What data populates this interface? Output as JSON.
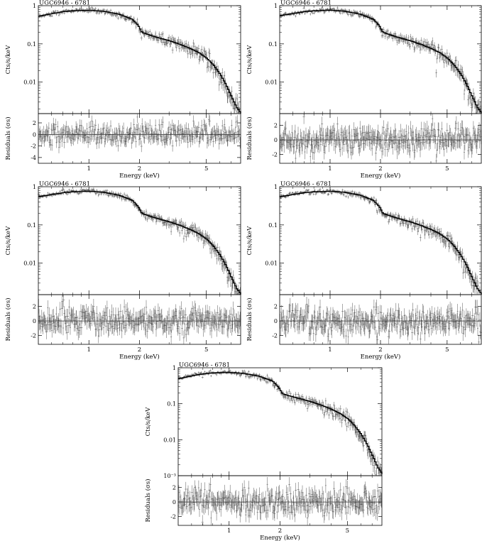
{
  "figure": {
    "panels": [
      {
        "title": "UGC6946 - 6781",
        "ylabel_top": "Cts/s/keV",
        "ylabel_bottom": "Residuals (σs)",
        "xlabel": "Energy (keV)"
      },
      {
        "title": "UGC6946 - 6781",
        "ylabel_top": "Cts/s/keV",
        "ylabel_bottom": "Residuals (σs)",
        "xlabel": "Energy (keV)"
      },
      {
        "title": "UGC6946 - 6781",
        "ylabel_top": "Cts/s/keV",
        "ylabel_bottom": "Residuals (σs)",
        "xlabel": "Energy (keV)"
      },
      {
        "title": "UGC6946 - 6781",
        "ylabel_top": "Cts/s/keV",
        "ylabel_bottom": "Residuals (σs)",
        "xlabel": "Energy (keV)"
      },
      {
        "title": "UGC6946 - 6781",
        "ylabel_top": "Cts/s/keV",
        "ylabel_bottom": "Residuals (σs)",
        "xlabel": "Energy (keV)"
      }
    ]
  },
  "chart_data": [
    {
      "type": "scatter",
      "title": "UGC6946 - 6781",
      "xlabel": "Energy (keV)",
      "ylabel": "Cts/s/keV",
      "residual_ylabel": "Residuals (σs)",
      "xscale": "log",
      "xlim": [
        0.5,
        8.0
      ],
      "xticks": [
        1,
        2,
        5
      ],
      "yscale": "log",
      "ylim": [
        0.0015,
        1.0
      ],
      "yticks": [
        1,
        0.1,
        0.01
      ],
      "ytick_labels": [
        "1",
        "0.1",
        "0.01"
      ],
      "residual_ylim": [
        -5,
        3.6
      ],
      "residual_yticks": [
        2,
        0,
        -2,
        -4
      ],
      "model_curve": {
        "x": [
          0.5,
          0.6,
          0.7,
          0.8,
          1.0,
          1.2,
          1.5,
          1.8,
          1.95,
          2.05,
          2.2,
          2.5,
          3.0,
          3.5,
          4.0,
          4.5,
          5.0,
          5.5,
          6.0,
          6.5,
          7.0,
          7.5,
          8.0
        ],
        "y": [
          0.53,
          0.62,
          0.7,
          0.74,
          0.76,
          0.72,
          0.6,
          0.44,
          0.3,
          0.2,
          0.18,
          0.15,
          0.12,
          0.095,
          0.075,
          0.058,
          0.042,
          0.027,
          0.016,
          0.0085,
          0.0042,
          0.0022,
          0.0015
        ]
      }
    },
    {
      "type": "scatter",
      "title": "UGC6946 - 6781",
      "xlabel": "Energy (keV)",
      "ylabel": "Cts/s/keV",
      "residual_ylabel": "Residuals (σs)",
      "xscale": "log",
      "xlim": [
        0.5,
        8.0
      ],
      "xticks": [
        1,
        2,
        5
      ],
      "yscale": "log",
      "ylim": [
        0.0015,
        1.0
      ],
      "yticks": [
        1,
        0.1,
        0.01
      ],
      "ytick_labels": [
        "1",
        "0.1",
        "0.01"
      ],
      "residual_ylim": [
        -3.2,
        3.6
      ],
      "residual_yticks": [
        2,
        0,
        -2
      ],
      "model_curve": {
        "x": [
          0.5,
          0.6,
          0.7,
          0.8,
          1.0,
          1.2,
          1.5,
          1.8,
          1.95,
          2.05,
          2.2,
          2.5,
          3.0,
          3.5,
          4.0,
          4.5,
          5.0,
          5.5,
          6.0,
          6.5,
          7.0,
          7.5,
          8.0
        ],
        "y": [
          0.55,
          0.63,
          0.7,
          0.74,
          0.76,
          0.72,
          0.6,
          0.44,
          0.3,
          0.2,
          0.18,
          0.15,
          0.12,
          0.095,
          0.075,
          0.058,
          0.042,
          0.027,
          0.016,
          0.0085,
          0.0042,
          0.0022,
          0.0015
        ]
      }
    },
    {
      "type": "scatter",
      "title": "UGC6946 - 6781",
      "xlabel": "Energy (keV)",
      "ylabel": "Cts/s/keV",
      "residual_ylabel": "Residuals (σs)",
      "xscale": "log",
      "xlim": [
        0.5,
        8.0
      ],
      "xticks": [
        1,
        2,
        5
      ],
      "yscale": "log",
      "ylim": [
        0.0015,
        1.0
      ],
      "yticks": [
        1,
        0.1,
        0.01
      ],
      "ytick_labels": [
        "1",
        "0.1",
        "0.01"
      ],
      "residual_ylim": [
        -3.2,
        3.6
      ],
      "residual_yticks": [
        2,
        0,
        -2
      ],
      "model_curve": {
        "x": [
          0.5,
          0.6,
          0.7,
          0.8,
          1.0,
          1.2,
          1.5,
          1.8,
          1.95,
          2.05,
          2.2,
          2.5,
          3.0,
          3.5,
          4.0,
          4.5,
          5.0,
          5.5,
          6.0,
          6.5,
          7.0,
          7.5,
          8.0
        ],
        "y": [
          0.55,
          0.63,
          0.7,
          0.74,
          0.76,
          0.72,
          0.6,
          0.44,
          0.3,
          0.2,
          0.18,
          0.15,
          0.12,
          0.095,
          0.075,
          0.058,
          0.042,
          0.027,
          0.016,
          0.0085,
          0.0042,
          0.0022,
          0.0015
        ]
      }
    },
    {
      "type": "scatter",
      "title": "UGC6946 - 6781",
      "xlabel": "Energy (keV)",
      "ylabel": "Cts/s/keV",
      "residual_ylabel": "Residuals (σs)",
      "xscale": "log",
      "xlim": [
        0.5,
        8.0
      ],
      "xticks": [
        1,
        2,
        5
      ],
      "yscale": "log",
      "ylim": [
        0.0015,
        1.0
      ],
      "yticks": [
        1,
        0.1,
        0.01
      ],
      "ytick_labels": [
        "1",
        "0.1",
        "0.01"
      ],
      "residual_ylim": [
        -3.2,
        3.6
      ],
      "residual_yticks": [
        2,
        0,
        -2
      ],
      "model_curve": {
        "x": [
          0.5,
          0.6,
          0.7,
          0.8,
          1.0,
          1.2,
          1.5,
          1.8,
          1.95,
          2.05,
          2.2,
          2.5,
          3.0,
          3.5,
          4.0,
          4.5,
          5.0,
          5.5,
          6.0,
          6.5,
          7.0,
          7.5,
          8.0
        ],
        "y": [
          0.55,
          0.63,
          0.7,
          0.74,
          0.76,
          0.72,
          0.6,
          0.44,
          0.3,
          0.2,
          0.18,
          0.15,
          0.12,
          0.095,
          0.075,
          0.058,
          0.042,
          0.027,
          0.016,
          0.0085,
          0.0042,
          0.0022,
          0.0015
        ]
      }
    },
    {
      "type": "scatter",
      "title": "UGC6946 - 6781",
      "xlabel": "Energy (keV)",
      "ylabel": "Cts/s/keV",
      "residual_ylabel": "Residuals (σs)",
      "xscale": "log",
      "xlim": [
        0.5,
        8.0
      ],
      "xticks": [
        1,
        2,
        5
      ],
      "yscale": "log",
      "ylim": [
        0.001,
        1.0
      ],
      "yticks": [
        1,
        0.1,
        0.01,
        0.001
      ],
      "ytick_labels": [
        "1",
        "0.1",
        "0.01",
        "10⁻³"
      ],
      "residual_ylim": [
        -3.2,
        3.6
      ],
      "residual_yticks": [
        2,
        0,
        -2
      ],
      "model_curve": {
        "x": [
          0.5,
          0.6,
          0.7,
          0.8,
          1.0,
          1.2,
          1.5,
          1.8,
          1.95,
          2.05,
          2.2,
          2.5,
          3.0,
          3.5,
          4.0,
          4.5,
          5.0,
          5.5,
          6.0,
          6.5,
          7.0,
          7.5,
          8.0
        ],
        "y": [
          0.5,
          0.6,
          0.68,
          0.72,
          0.74,
          0.7,
          0.58,
          0.42,
          0.28,
          0.19,
          0.17,
          0.145,
          0.115,
          0.09,
          0.07,
          0.053,
          0.038,
          0.024,
          0.014,
          0.0072,
          0.0035,
          0.0017,
          0.0011
        ]
      }
    }
  ]
}
